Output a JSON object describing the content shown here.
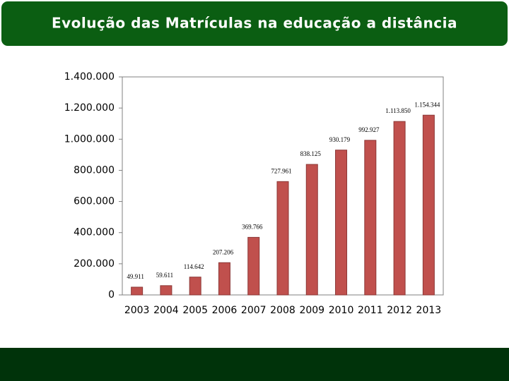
{
  "chart_data": {
    "type": "bar",
    "title": "Evolução das Matrículas na educação a distância",
    "categories": [
      "2003",
      "2004",
      "2005",
      "2006",
      "2007",
      "2008",
      "2009",
      "2010",
      "2011",
      "2012",
      "2013"
    ],
    "values": [
      49911,
      59611,
      114642,
      207206,
      369766,
      727961,
      838125,
      930179,
      992927,
      1113850,
      1154344
    ],
    "value_labels": [
      "49.911",
      "59.611",
      "114.642",
      "207.206",
      "369.766",
      "727.961",
      "838.125",
      "930.179",
      "992.927",
      "1.113.850",
      "1.154.344"
    ],
    "color": "#c0504d",
    "ylim": [
      0,
      1400000
    ],
    "yticks": [
      0,
      {
        "value": 200000,
        "label": "200.000"
      },
      {
        "value": 400000,
        "label": "400.000"
      },
      {
        "value": 600000,
        "label": "600.000"
      },
      {
        "value": 800000,
        "label": "800.000"
      },
      {
        "value": 1000000,
        "label": "1.000.000"
      },
      {
        "value": 1200000,
        "label": "1.200.000"
      },
      {
        "value": 1400000,
        "label": "1.400.000"
      }
    ],
    "grid": false
  }
}
